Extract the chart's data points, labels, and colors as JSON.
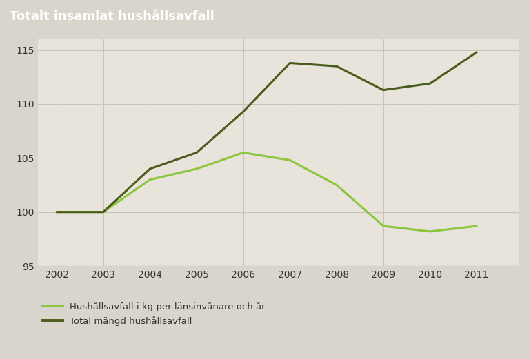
{
  "title": "Totalt insamlat hushållsavfall",
  "title_bg_color": "#8c8980",
  "title_text_color": "#ffffff",
  "plot_bg_color": "#e8e4dc",
  "outer_bg_color": "#d9d5cc",
  "years": [
    2002,
    2003,
    2004,
    2005,
    2006,
    2007,
    2008,
    2009,
    2010,
    2011
  ],
  "hushall_values": [
    100.0,
    100.0,
    103.0,
    104.0,
    105.5,
    104.8,
    102.5,
    98.7,
    98.2,
    98.7
  ],
  "total_values": [
    100.0,
    100.0,
    104.0,
    105.5,
    109.3,
    113.8,
    113.5,
    111.3,
    111.9,
    114.8
  ],
  "hushall_color": "#8cc63f",
  "total_color": "#4a5c1a",
  "ylim": [
    95,
    116
  ],
  "yticks": [
    95,
    100,
    105,
    110,
    115
  ],
  "legend_label_hushall": "Hushållsavfall i kg per länsinvånare och år",
  "legend_label_total": "Total mängd hushållsavfall",
  "grid_color": "#c8c4bc",
  "line_width": 2.2,
  "tick_fontsize": 10,
  "title_fontsize": 13
}
